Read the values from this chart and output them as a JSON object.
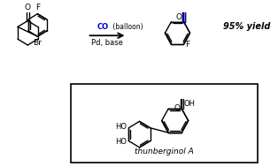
{
  "bg_color": "#ffffff",
  "black": "#000000",
  "blue": "#0000cc",
  "yield_text": "95% yield",
  "co_text": "CO",
  "balloon_text": " (balloon)",
  "pd_text": "Pd, base",
  "thunberginol_label": "thunberginol A",
  "fig_width": 3.14,
  "fig_height": 1.89,
  "dpi": 100
}
